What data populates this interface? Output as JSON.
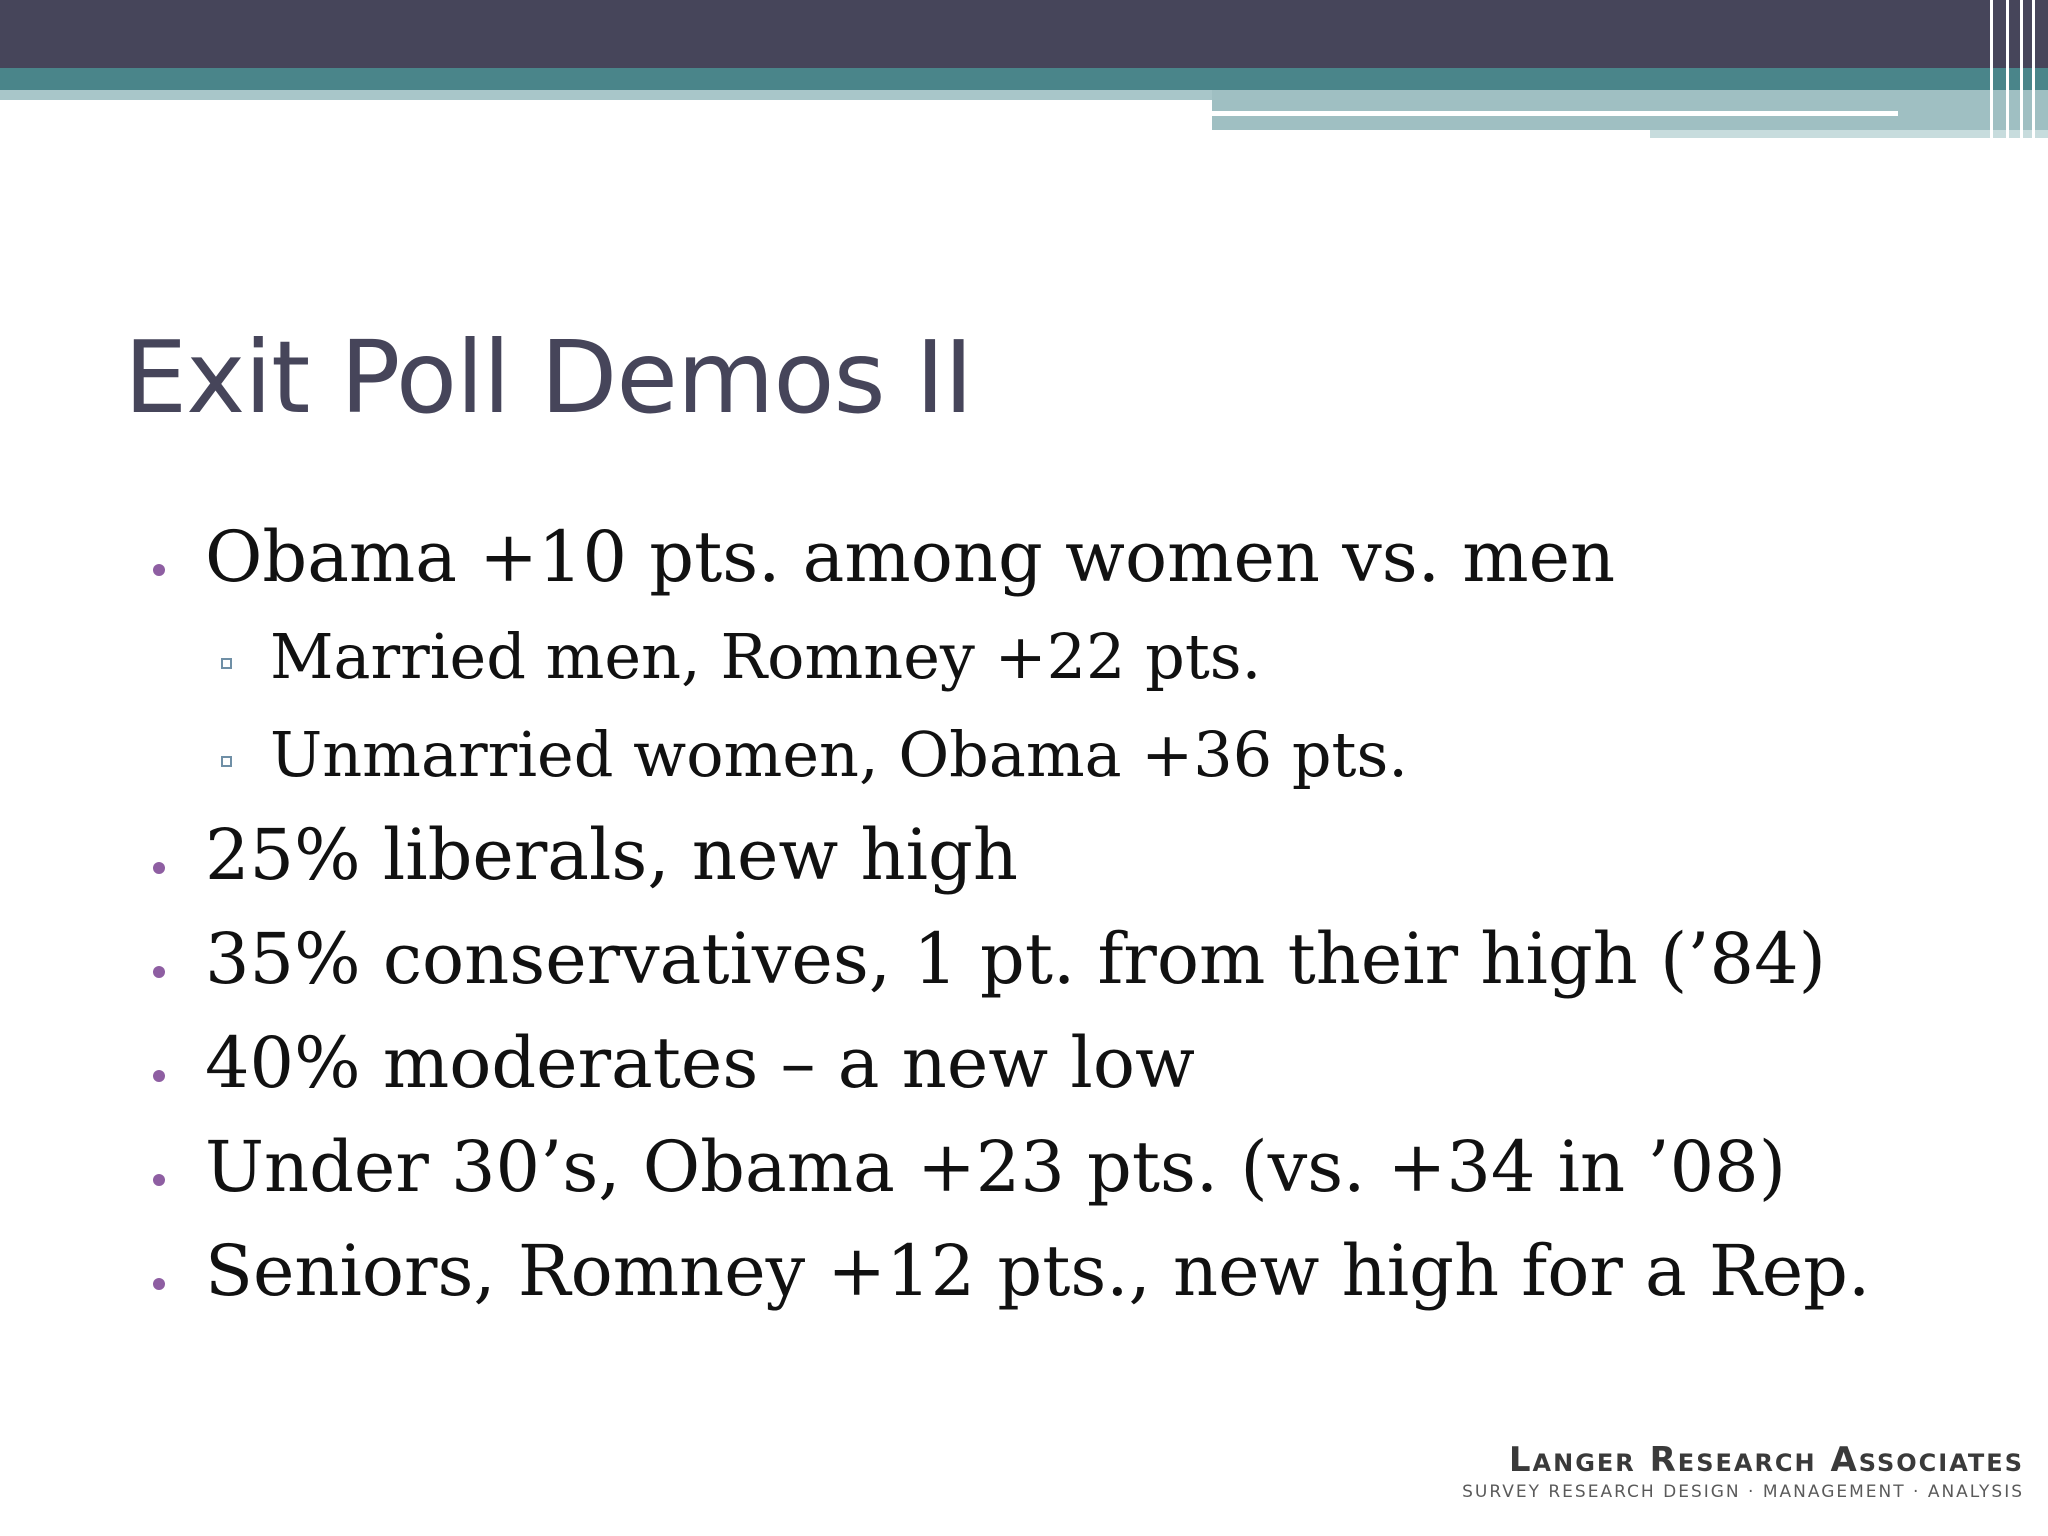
{
  "slide": {
    "title": "Exit Poll Demos II",
    "bullets": [
      {
        "level": 1,
        "text": "Obama +10 pts. among women vs. men"
      },
      {
        "level": 2,
        "text": "Married men, Romney +22 pts."
      },
      {
        "level": 2,
        "text": "Unmarried women, Obama +36 pts."
      },
      {
        "level": 1,
        "text": "25% liberals, new high"
      },
      {
        "level": 1,
        "text": "35% conservatives, 1 pt. from their high (’84)"
      },
      {
        "level": 1,
        "text": "40% moderates – a new low"
      },
      {
        "level": 1,
        "text": "Under 30’s, Obama +23 pts. (vs. +34 in ’08)"
      },
      {
        "level": 1,
        "text": "Seniors, Romney +12 pts., new high for a Rep."
      }
    ]
  },
  "logo": {
    "name": "Langer Research Associates",
    "tagline": "SURVEY RESEARCH DESIGN · MANAGEMENT · ANALYSIS"
  },
  "colors": {
    "header_dark": "#46455a",
    "header_teal": "#4a858a",
    "header_light": "#a8c6c9",
    "title": "#46455a",
    "bullet_dot": "#8e5ea2",
    "sub_bullet": "#6f8fa6",
    "text": "#111111"
  }
}
